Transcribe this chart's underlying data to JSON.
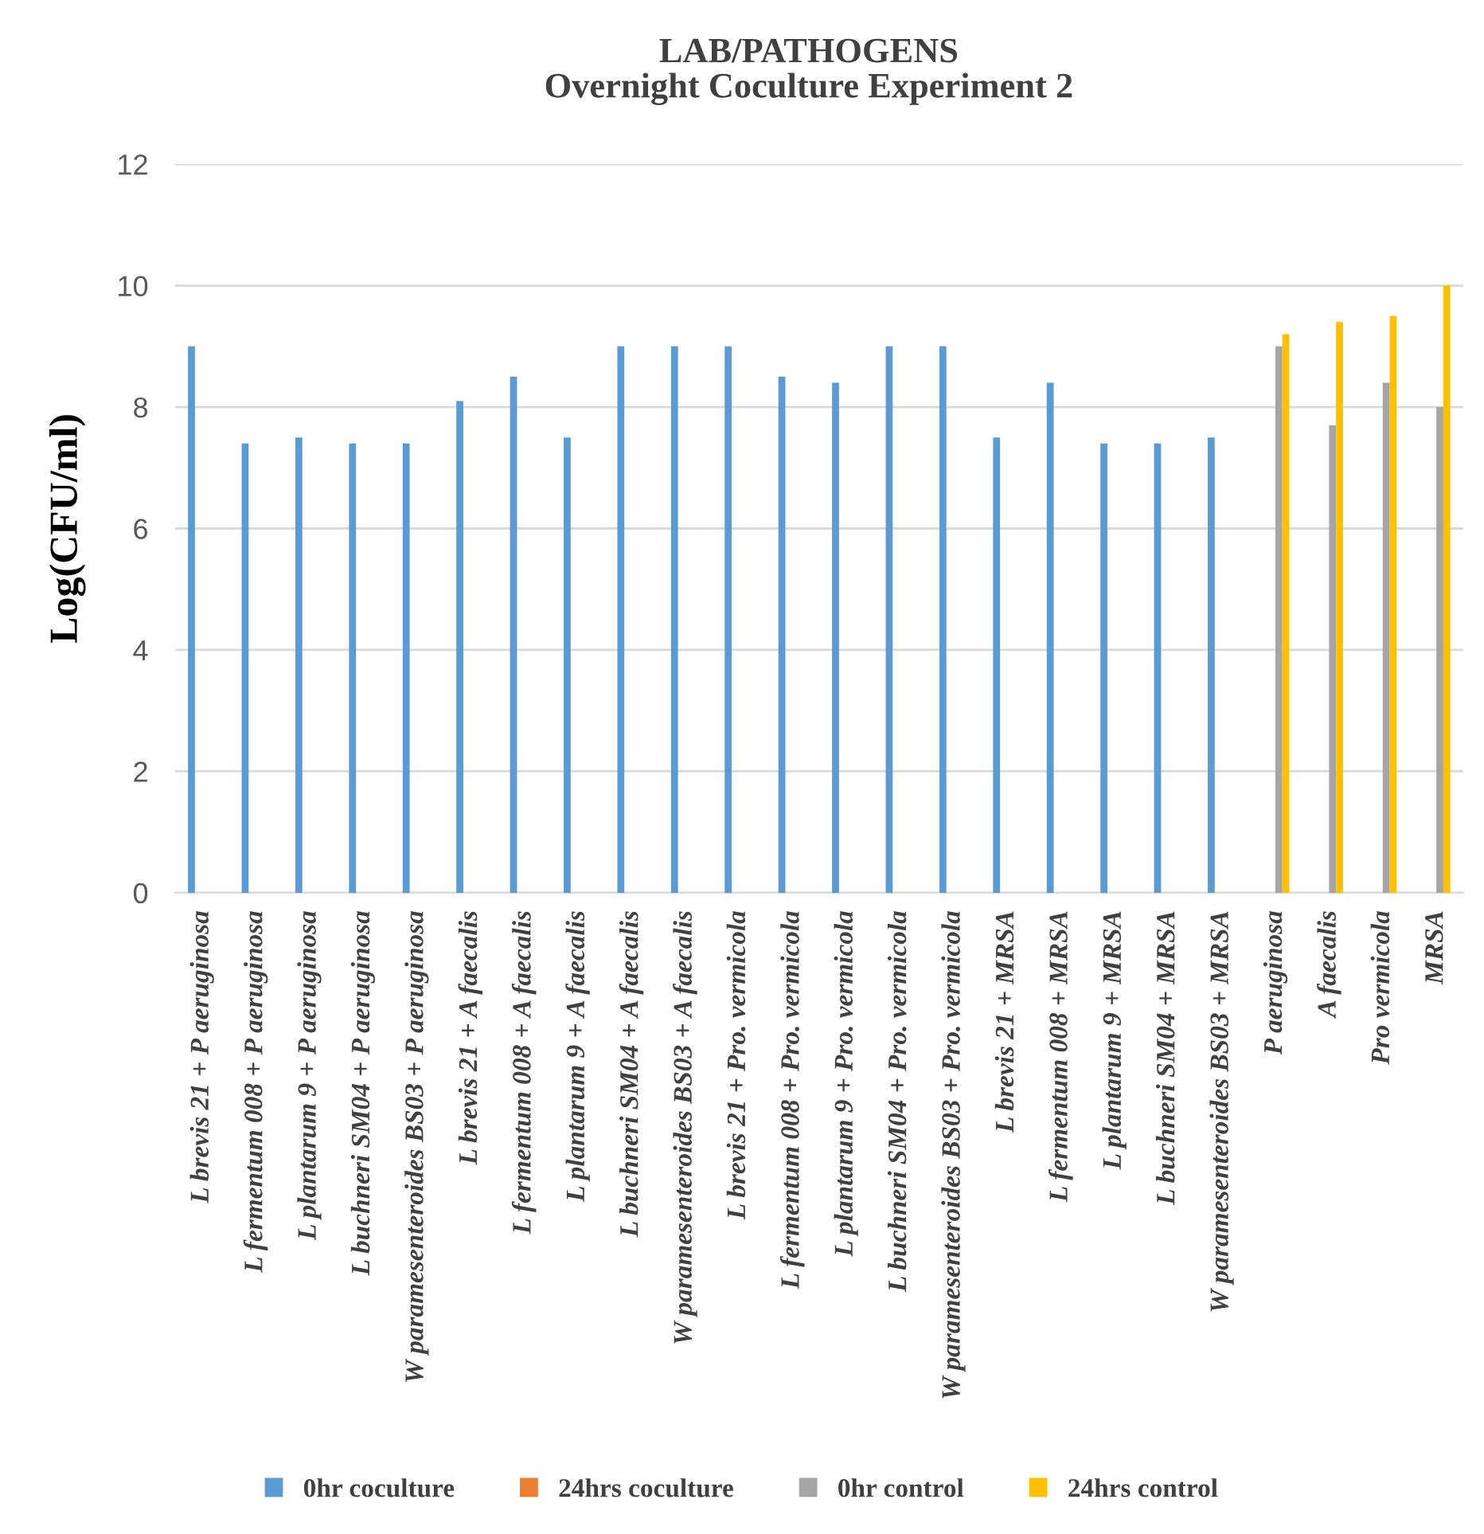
{
  "chart_data": {
    "type": "bar",
    "title": "LAB/PATHOGENS",
    "subtitle": "Overnight Coculture Experiment 2",
    "ylabel": "Log(CFU/ml)",
    "categories": [
      "L brevis 21 + P aeruginosa",
      "L fermentum 008 + P aeruginosa",
      "L plantarum 9 + P aeruginosa",
      "L buchneri SM04 + P aeruginosa",
      "W paramesenteroides BS03 + P aeruginosa",
      "L brevis 21 + A faecalis",
      "L fermentum 008 + A faecalis",
      "L plantarum 9 + A faecalis",
      "L buchneri SM04 + A faecalis",
      "W paramesenteroides BS03 + A faecalis",
      "L brevis 21 + Pro. vermicola",
      "L fermentum 008 + Pro. vermicola",
      "L plantarum 9 + Pro. vermicola",
      "L buchneri SM04 + Pro. vermicola",
      "W paramesenteroides BS03 + Pro. vermicola",
      "L brevis 21 + MRSA",
      "L fermentum 008 + MRSA",
      "L plantarum 9 + MRSA",
      "L buchneri SM04 + MRSA",
      "W paramesenteroides BS03 + MRSA",
      "P aeruginosa",
      "A faecalis",
      "Pro vermicola",
      "MRSA"
    ],
    "series": [
      {
        "name": "0hr coculture",
        "color": "#5b9bd5",
        "values": [
          9,
          7.4,
          7.5,
          7.4,
          7.4,
          8.1,
          8.5,
          7.5,
          9,
          9,
          9,
          8.5,
          8.4,
          9,
          9,
          7.5,
          8.4,
          7.4,
          7.4,
          7.5,
          null,
          null,
          null,
          null
        ]
      },
      {
        "name": "24hrs coculture",
        "color": "#ed7d31",
        "values": [
          null,
          null,
          null,
          null,
          null,
          null,
          null,
          null,
          null,
          null,
          null,
          null,
          null,
          null,
          null,
          null,
          null,
          null,
          null,
          null,
          null,
          null,
          null,
          null
        ]
      },
      {
        "name": "0hr control",
        "color": "#a5a5a5",
        "values": [
          null,
          null,
          null,
          null,
          null,
          null,
          null,
          null,
          null,
          null,
          null,
          null,
          null,
          null,
          null,
          null,
          null,
          null,
          null,
          null,
          9,
          7.7,
          8.4,
          8.0
        ]
      },
      {
        "name": "24hrs control",
        "color": "#ffc000",
        "values": [
          null,
          null,
          null,
          null,
          null,
          null,
          null,
          null,
          null,
          null,
          null,
          null,
          null,
          null,
          null,
          null,
          null,
          null,
          null,
          null,
          9.2,
          9.4,
          9.5,
          10
        ]
      }
    ],
    "ylim": [
      0,
      12
    ],
    "yticks": [
      0,
      2,
      4,
      6,
      8,
      10,
      12
    ],
    "grid": "y",
    "legend": "bottom"
  }
}
